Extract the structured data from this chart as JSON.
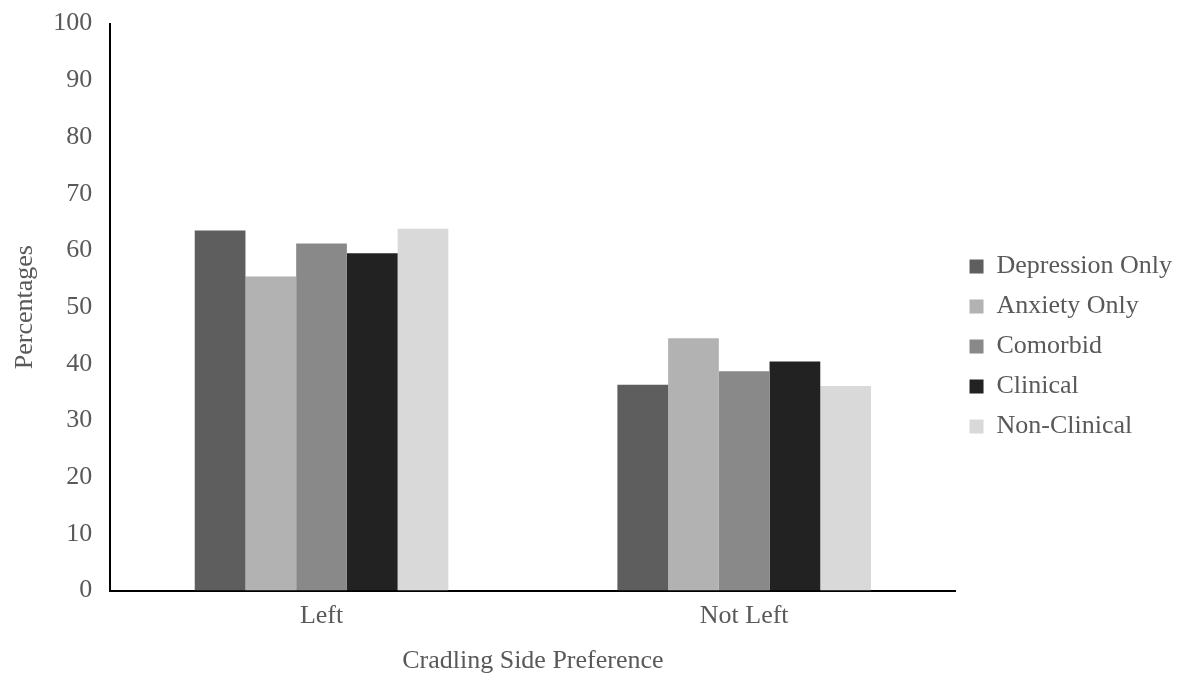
{
  "chart_data": {
    "type": "bar",
    "xlabel": "Cradling Side Preference",
    "ylabel": "Percentages",
    "categories": [
      "Left",
      "Not Left"
    ],
    "series": [
      {
        "name": "Depression Only",
        "color": "#5e5e5e",
        "values": [
          63.5,
          36.3
        ]
      },
      {
        "name": "Anxiety Only",
        "color": "#b2b2b2",
        "values": [
          55.4,
          44.5
        ]
      },
      {
        "name": "Comorbid",
        "color": "#898989",
        "values": [
          61.2,
          38.7
        ]
      },
      {
        "name": "Clinical",
        "color": "#222222",
        "values": [
          59.5,
          40.4
        ]
      },
      {
        "name": "Non-Clinical",
        "color": "#d9d9d9",
        "values": [
          63.8,
          36.1
        ]
      }
    ],
    "ylim": [
      0,
      100
    ],
    "yticks": [
      0,
      10,
      20,
      30,
      40,
      50,
      60,
      70,
      80,
      90,
      100
    ],
    "grid": false,
    "legend": "right"
  }
}
